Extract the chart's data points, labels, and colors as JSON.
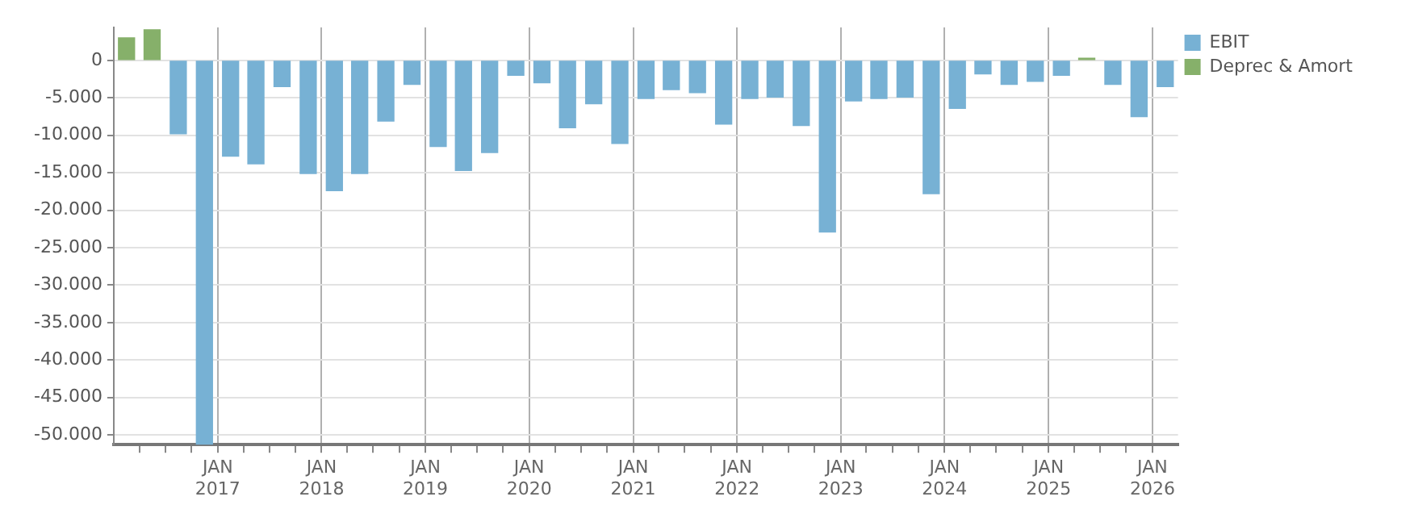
{
  "chart_data": {
    "type": "bar",
    "stacked": true,
    "x": [
      "2016-02-15",
      "2016-05-15",
      "2016-08-15",
      "2016-11-15",
      "2017-02-15",
      "2017-05-15",
      "2017-08-15",
      "2017-11-15",
      "2018-02-15",
      "2018-05-15",
      "2018-08-15",
      "2018-11-15",
      "2019-02-15",
      "2019-05-15",
      "2019-08-15",
      "2019-11-15",
      "2020-02-15",
      "2020-05-15",
      "2020-08-15",
      "2020-11-15",
      "2021-02-15",
      "2021-05-15",
      "2021-08-15",
      "2021-11-15",
      "2022-02-15",
      "2022-05-15",
      "2022-08-15",
      "2022-11-15",
      "2023-02-15",
      "2023-05-15",
      "2023-08-15",
      "2023-11-15",
      "2024-02-15",
      "2024-05-15",
      "2024-08-15",
      "2024-11-15",
      "2025-02-15",
      "2025-05-15",
      "2025-08-15",
      "2025-11-15",
      "2026-02-15"
    ],
    "series": [
      {
        "name": "EBIT",
        "color": "#77b1d4",
        "values": [
          null,
          null,
          -9800,
          -51300,
          -12800,
          -13800,
          -3500,
          -15100,
          -17400,
          -15100,
          -8100,
          -3200,
          -11500,
          -14700,
          -12300,
          -2000,
          -3000,
          -9000,
          -5800,
          -11100,
          -5100,
          -3900,
          -4300,
          -8500,
          -5100,
          -4900,
          -8700,
          -22900,
          -5400,
          -5100,
          -4900,
          -17800,
          -6400,
          -1800,
          -3200,
          -2800,
          -2000,
          null,
          -3200,
          -7500,
          -3500
        ]
      },
      {
        "name": "Deprec & Amort",
        "color": "#86b06a",
        "values": [
          3000,
          4100,
          null,
          null,
          null,
          null,
          null,
          null,
          null,
          null,
          null,
          null,
          null,
          null,
          null,
          null,
          null,
          null,
          null,
          null,
          null,
          null,
          null,
          null,
          null,
          null,
          null,
          null,
          null,
          null,
          null,
          null,
          null,
          null,
          null,
          null,
          null,
          300,
          null,
          null,
          null
        ]
      }
    ],
    "xlim": [
      "2016-01",
      "2026-04"
    ],
    "xticks": [
      {
        "value": "2016-04",
        "label": null
      },
      {
        "value": "2016-07",
        "label": null
      },
      {
        "value": "2016-10",
        "label": null
      },
      {
        "value": "2017-01",
        "label": "JAN 2017"
      },
      {
        "value": "2017-04",
        "label": null
      },
      {
        "value": "2017-07",
        "label": null
      },
      {
        "value": "2017-10",
        "label": null
      },
      {
        "value": "2018-01",
        "label": "JAN 2018"
      },
      {
        "value": "2018-04",
        "label": null
      },
      {
        "value": "2018-07",
        "label": null
      },
      {
        "value": "2018-10",
        "label": null
      },
      {
        "value": "2019-01",
        "label": "JAN 2019"
      },
      {
        "value": "2019-04",
        "label": null
      },
      {
        "value": "2019-07",
        "label": null
      },
      {
        "value": "2019-10",
        "label": null
      },
      {
        "value": "2020-01",
        "label": "JAN 2020"
      },
      {
        "value": "2020-04",
        "label": null
      },
      {
        "value": "2020-07",
        "label": null
      },
      {
        "value": "2020-10",
        "label": null
      },
      {
        "value": "2021-01",
        "label": "JAN 2021"
      },
      {
        "value": "2021-04",
        "label": null
      },
      {
        "value": "2021-07",
        "label": null
      },
      {
        "value": "2021-10",
        "label": null
      },
      {
        "value": "2022-01",
        "label": "JAN 2022"
      },
      {
        "value": "2022-04",
        "label": null
      },
      {
        "value": "2022-07",
        "label": null
      },
      {
        "value": "2022-10",
        "label": null
      },
      {
        "value": "2023-01",
        "label": "JAN 2023"
      },
      {
        "value": "2023-04",
        "label": null
      },
      {
        "value": "2023-07",
        "label": null
      },
      {
        "value": "2023-10",
        "label": null
      },
      {
        "value": "2024-01",
        "label": "JAN 2024"
      },
      {
        "value": "2024-04",
        "label": null
      },
      {
        "value": "2024-07",
        "label": null
      },
      {
        "value": "2024-10",
        "label": null
      },
      {
        "value": "2025-01",
        "label": "JAN 2025"
      },
      {
        "value": "2025-04",
        "label": null
      },
      {
        "value": "2025-07",
        "label": null
      },
      {
        "value": "2025-10",
        "label": null
      },
      {
        "value": "2026-01",
        "label": "JAN 2026"
      }
    ],
    "ylim": [
      -51300,
      4400
    ],
    "yticks": [
      {
        "value": 0,
        "label": "0"
      },
      {
        "value": -5000,
        "label": "-5.000"
      },
      {
        "value": -10000,
        "label": "-10.000"
      },
      {
        "value": -15000,
        "label": "-15.000"
      },
      {
        "value": -20000,
        "label": "-20.000"
      },
      {
        "value": -25000,
        "label": "-25.000"
      },
      {
        "value": -30000,
        "label": "-30.000"
      },
      {
        "value": -35000,
        "label": "-35.000"
      },
      {
        "value": -40000,
        "label": "-40.000"
      },
      {
        "value": -45000,
        "label": "-45.000"
      },
      {
        "value": -50000,
        "label": "-50.000"
      }
    ],
    "grid": true,
    "legend": "top right"
  }
}
